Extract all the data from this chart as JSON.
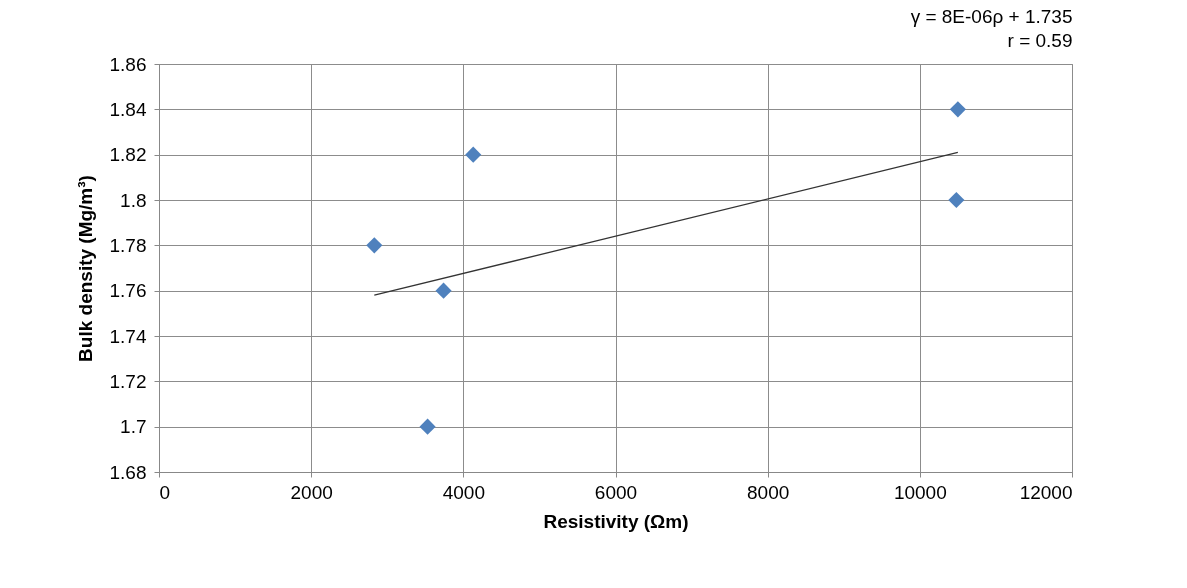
{
  "chart_data": {
    "type": "scatter",
    "xlabel": "Resistivity (Ωm)",
    "ylabel": "Bulk density (Mg/m³)",
    "annotations": [
      "γ = 8E-06ρ + 1.735",
      "r = 0.59"
    ],
    "x": [
      2830,
      3530,
      3740,
      4130,
      10500,
      10480
    ],
    "series": [
      {
        "color": "#4f81bd",
        "marker": "diamond",
        "values": [
          1.78,
          1.7,
          1.76,
          1.82,
          1.84,
          1.8
        ]
      },
      {
        "type": "line",
        "color": "#333333",
        "marker": "none",
        "x": [
          2830,
          10500
        ],
        "values": [
          1.758,
          1.821
        ]
      }
    ],
    "xlim": [
      0,
      12000
    ],
    "xticks": [
      0,
      2000,
      4000,
      6000,
      8000,
      10000,
      12000
    ],
    "ylim": [
      1.68,
      1.86
    ],
    "yticks": [
      1.68,
      1.7,
      1.72,
      1.74,
      1.76,
      1.78,
      1.8,
      1.82,
      1.84,
      1.86
    ],
    "grid": true
  }
}
